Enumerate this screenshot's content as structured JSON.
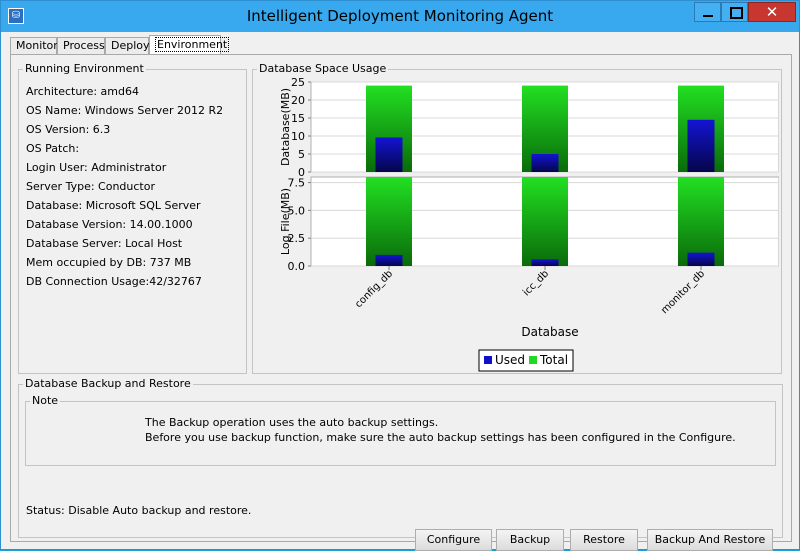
{
  "window": {
    "title": "Intelligent Deployment Monitoring Agent"
  },
  "tabs": [
    "Monitor",
    "Process",
    "Deploy",
    "Environment"
  ],
  "running_env": {
    "title": "Running Environment",
    "rows": [
      "Architecture: amd64",
      "OS Name: Windows Server 2012 R2",
      "OS Version: 6.3",
      "OS Patch:",
      "Login User: Administrator",
      "Server Type: Conductor",
      "Database: Microsoft SQL Server",
      "Database Version: 14.00.1000",
      "Database Server: Local Host",
      "Mem occupied by DB: 737 MB",
      "DB Connection Usage:42/32767"
    ]
  },
  "db_usage": {
    "title": "Database Space Usage"
  },
  "chart_data": {
    "type": "bar",
    "categories": [
      "config_db",
      "icc_db",
      "monitor_db"
    ],
    "xlabel": "Database",
    "legend": [
      "Used",
      "Total"
    ],
    "legend_position": "bottom",
    "colors": {
      "used": "#1010c8",
      "total": "#22d822"
    },
    "panels": [
      {
        "ylabel": "Database(MB)",
        "ylim": [
          0,
          25
        ],
        "ticks": [
          0,
          5,
          10,
          15,
          20,
          25
        ],
        "series": [
          {
            "name": "Used",
            "values": [
              9.6,
              5.0,
              14.5
            ]
          },
          {
            "name": "Total",
            "values": [
              24.0,
              24.0,
              24.0
            ]
          }
        ]
      },
      {
        "ylabel": "Log File(MB)",
        "ylim": [
          0,
          8
        ],
        "ticks": [
          0.0,
          2.5,
          5.0,
          7.5
        ],
        "series": [
          {
            "name": "Used",
            "values": [
              1.0,
              0.6,
              1.2
            ]
          },
          {
            "name": "Total",
            "values": [
              8.0,
              8.0,
              8.0
            ]
          }
        ]
      }
    ]
  },
  "backup": {
    "title": "Database Backup and Restore",
    "note_title": "Note",
    "note_line1": "The Backup operation uses the auto backup settings.",
    "note_line2": "Before you use backup function, make sure the auto backup settings has been configured in the Configure.",
    "buttons": {
      "configure": "Configure",
      "backup": "Backup",
      "restore": "Restore",
      "backup_restore": "Backup And Restore"
    },
    "status": "Status: Disable Auto backup and restore."
  }
}
